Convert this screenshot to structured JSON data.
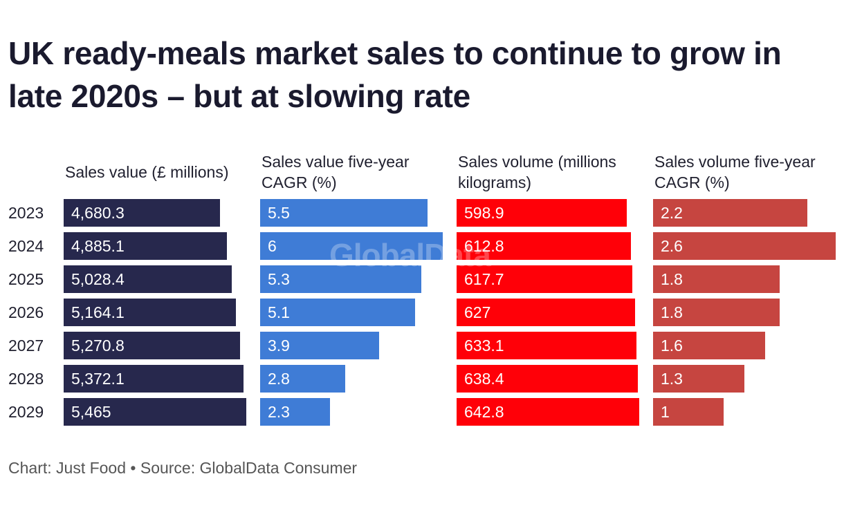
{
  "chart_data": {
    "type": "bar",
    "orientation": "horizontal",
    "title": "UK ready-meals market sales to continue to grow in late 2020s – but at slowing rate",
    "categories": [
      "2023",
      "2024",
      "2025",
      "2026",
      "2027",
      "2028",
      "2029"
    ],
    "series": [
      {
        "name": "Sales value (£ millions)",
        "color": "#27284d",
        "values": [
          4680.3,
          4885.1,
          5028.4,
          5164.1,
          5270.8,
          5372.1,
          5465
        ],
        "labels": [
          "4,680.3",
          "4,885.1",
          "5,028.4",
          "5,164.1",
          "5,270.8",
          "5,372.1",
          "5,465"
        ]
      },
      {
        "name": "Sales value five-year CAGR (%)",
        "color": "#3f7cd6",
        "values": [
          5.5,
          6,
          5.3,
          5.1,
          3.9,
          2.8,
          2.3
        ],
        "labels": [
          "5.5",
          "6",
          "5.3",
          "5.1",
          "3.9",
          "2.8",
          "2.3"
        ]
      },
      {
        "name": "Sales volume (millions kilograms)",
        "color": "#ff0008",
        "values": [
          598.9,
          612.8,
          617.7,
          627,
          633.1,
          638.4,
          642.8
        ],
        "labels": [
          "598.9",
          "612.8",
          "617.7",
          "627",
          "633.1",
          "638.4",
          "642.8"
        ]
      },
      {
        "name": "Sales volume five-year CAGR (%)",
        "color": "#c64540",
        "values": [
          2.2,
          2.6,
          1.8,
          1.8,
          1.6,
          1.3,
          1
        ],
        "labels": [
          "2.2",
          "2.6",
          "1.8",
          "1.8",
          "1.6",
          "1.3",
          "1"
        ]
      }
    ],
    "xlabel": "",
    "ylabel": "",
    "grid": false,
    "legend": "none"
  },
  "headers": [
    "Sales value (£ millions)",
    "Sales value five-year CAGR (%)",
    "Sales volume (millions kilograms)",
    "Sales volume five-year CAGR (%)"
  ],
  "watermark": "GlobalData",
  "footer": "Chart: Just Food • Source: GlobalData Consumer"
}
